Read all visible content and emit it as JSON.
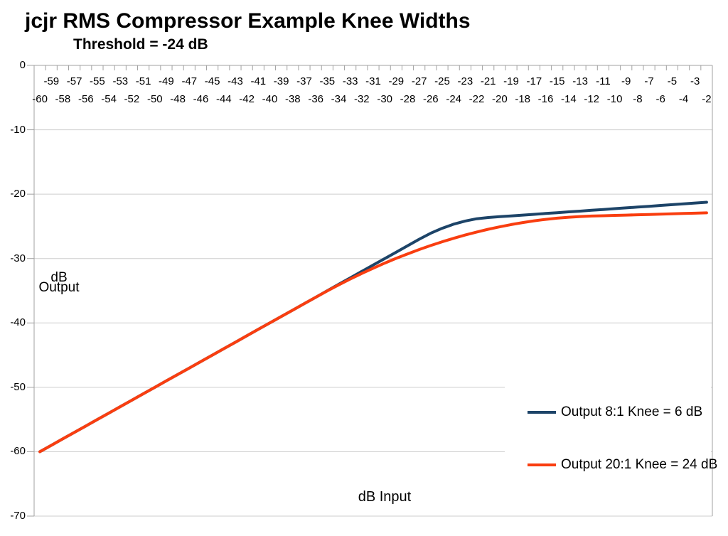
{
  "chart": {
    "title": "jcjr RMS Compressor Example Knee Widths",
    "subtitle": "Threshold = -24 dB",
    "y_axis_label_line1": "dB",
    "y_axis_label_line2": "Output",
    "x_axis_label": "dB Input"
  },
  "legend": {
    "items": [
      {
        "label": "Output 8:1 Knee = 6 dB",
        "color": "#1D4468"
      },
      {
        "label": "Output 20:1 Knee = 24 dB",
        "color": "#F93E10"
      }
    ]
  },
  "chart_data": {
    "type": "line",
    "title": "jcjr RMS Compressor Example Knee Widths",
    "subtitle": "Threshold = -24 dB",
    "xlabel": "dB Input",
    "ylabel": "dB Output",
    "threshold_db": -24,
    "ylim": [
      -70,
      0
    ],
    "grid": true,
    "grid_color": "#CDCDCD",
    "axis_color": "#A0A0A0",
    "legend_position": "inside-bottom-right",
    "y_ticks": [
      0,
      -10,
      -20,
      -30,
      -40,
      -50,
      -60,
      -70
    ],
    "x_tick_labels_row1": [
      -59,
      -57,
      -55,
      -53,
      -51,
      -49,
      -47,
      -45,
      -43,
      -41,
      -39,
      -37,
      -35,
      -33,
      -31,
      -29,
      -27,
      -25,
      -23,
      -21,
      -19,
      -17,
      -15,
      -13,
      -11,
      -9,
      -7,
      -5,
      -3
    ],
    "x_tick_labels_row2": [
      -60,
      -58,
      -56,
      -54,
      -52,
      -50,
      -48,
      -46,
      -44,
      -42,
      -40,
      -38,
      -36,
      -34,
      -32,
      -30,
      -28,
      -26,
      -24,
      -22,
      -20,
      -18,
      -16,
      -14,
      -12,
      -10,
      -8,
      -6,
      -4,
      -2
    ],
    "x": [
      -60,
      -59,
      -58,
      -57,
      -56,
      -55,
      -54,
      -53,
      -52,
      -51,
      -50,
      -49,
      -48,
      -47,
      -46,
      -45,
      -44,
      -43,
      -42,
      -41,
      -40,
      -39,
      -38,
      -37,
      -36,
      -35,
      -34,
      -33,
      -32,
      -31,
      -30,
      -29,
      -28,
      -27,
      -26,
      -25,
      -24,
      -23,
      -22,
      -21,
      -20,
      -19,
      -18,
      -17,
      -16,
      -15,
      -14,
      -13,
      -12,
      -11,
      -10,
      -9,
      -8,
      -7,
      -6,
      -5,
      -4,
      -3,
      -2
    ],
    "series": [
      {
        "name": "Output 8:1 Knee = 6 dB",
        "ratio": "8:1",
        "knee_db": 6,
        "color": "#1D4468",
        "values": [
          -60,
          -59,
          -58,
          -57,
          -56,
          -55,
          -54,
          -53,
          -52,
          -51,
          -50,
          -49,
          -48,
          -47,
          -46,
          -45,
          -44,
          -43,
          -42,
          -41,
          -40,
          -39,
          -38,
          -37,
          -36,
          -35,
          -34,
          -33,
          -32,
          -31,
          -30,
          -29,
          -28,
          -27,
          -26.07,
          -25.29,
          -24.66,
          -24.17,
          -23.82,
          -23.63,
          -23.5,
          -23.38,
          -23.25,
          -23.13,
          -23,
          -22.88,
          -22.75,
          -22.63,
          -22.5,
          -22.38,
          -22.25,
          -22.13,
          -22,
          -21.88,
          -21.75,
          -21.63,
          -21.5,
          -21.38,
          -21.25
        ]
      },
      {
        "name": "Output 20:1 Knee = 24 dB",
        "ratio": "20:1",
        "knee_db": 24,
        "color": "#F93E10",
        "values": [
          -60,
          -59,
          -58,
          -57,
          -56,
          -55,
          -54,
          -53,
          -52,
          -51,
          -50,
          -49,
          -48,
          -47,
          -46,
          -45,
          -44,
          -43,
          -42,
          -41,
          -40,
          -39,
          -38,
          -37,
          -36,
          -35.02,
          -34.08,
          -33.18,
          -32.32,
          -31.5,
          -30.71,
          -29.97,
          -29.27,
          -28.6,
          -27.98,
          -27.39,
          -26.85,
          -26.34,
          -25.88,
          -25.45,
          -25.07,
          -24.72,
          -24.41,
          -24.14,
          -23.92,
          -23.73,
          -23.58,
          -23.47,
          -23.4,
          -23.35,
          -23.3,
          -23.25,
          -23.2,
          -23.15,
          -23.1,
          -23.05,
          -23,
          -22.95,
          -22.9
        ]
      }
    ]
  }
}
